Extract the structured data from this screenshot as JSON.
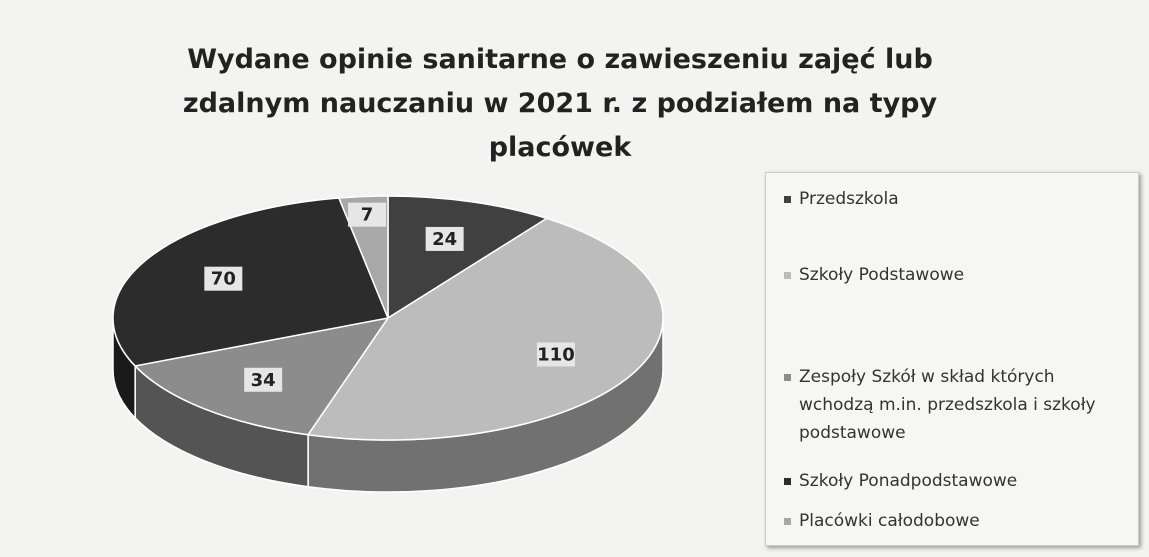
{
  "chart_data": {
    "type": "pie3d",
    "title": "Wydane opinie sanitarne o zawieszeniu zajęć lub zdalnym nauczaniu w 2021 r. z podziałem na typy placówek",
    "categories": [
      "Przedszkola",
      "Szkoły Podstawowe",
      "Zespoły Szkół w skład których wchodzą m.in. przedszkola i szkoły podstawowe",
      "Szkoły Ponadpodstawowe",
      "Placówki całodobowe"
    ],
    "values": [
      24,
      110,
      34,
      70,
      7
    ],
    "colors": [
      "#404040",
      "#bcbcbc",
      "#8c8c8c",
      "#2c2c2c",
      "#a8a8a8"
    ],
    "legend": "right"
  }
}
